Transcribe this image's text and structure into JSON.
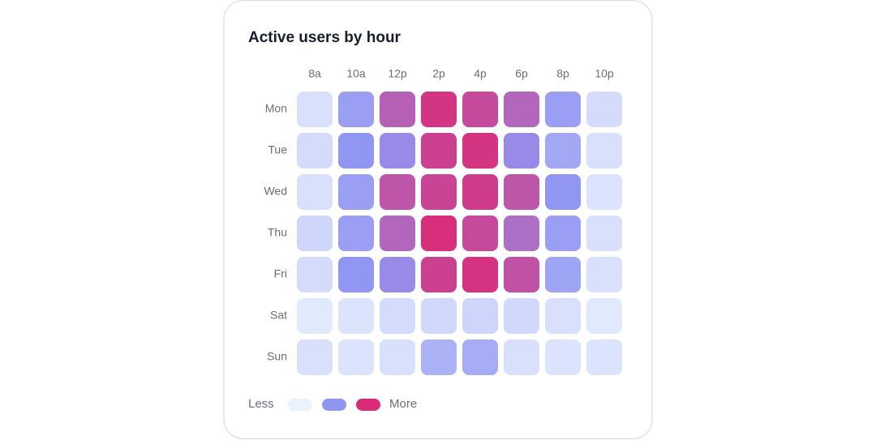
{
  "chart_data": {
    "type": "heatmap",
    "title": "Active users by hour",
    "x_categories": [
      "8a",
      "10a",
      "12p",
      "2p",
      "4p",
      "6p",
      "8p",
      "10p"
    ],
    "y_categories": [
      "Mon",
      "Tue",
      "Wed",
      "Thu",
      "Fri",
      "Sat",
      "Sun"
    ],
    "values": [
      [
        10,
        45,
        75,
        95,
        85,
        72,
        45,
        12
      ],
      [
        12,
        50,
        55,
        90,
        95,
        55,
        40,
        10
      ],
      [
        10,
        45,
        80,
        88,
        92,
        80,
        50,
        8
      ],
      [
        15,
        45,
        72,
        98,
        85,
        68,
        45,
        10
      ],
      [
        12,
        50,
        55,
        90,
        96,
        82,
        42,
        10
      ],
      [
        5,
        8,
        12,
        14,
        16,
        14,
        10,
        5
      ],
      [
        10,
        8,
        10,
        35,
        38,
        10,
        8,
        8
      ]
    ],
    "zlim": [
      0,
      100
    ],
    "color_scale": [
      "#eaf2fe",
      "#9196f3",
      "#db2a77"
    ],
    "legend": {
      "low": "Less",
      "high": "More"
    }
  }
}
